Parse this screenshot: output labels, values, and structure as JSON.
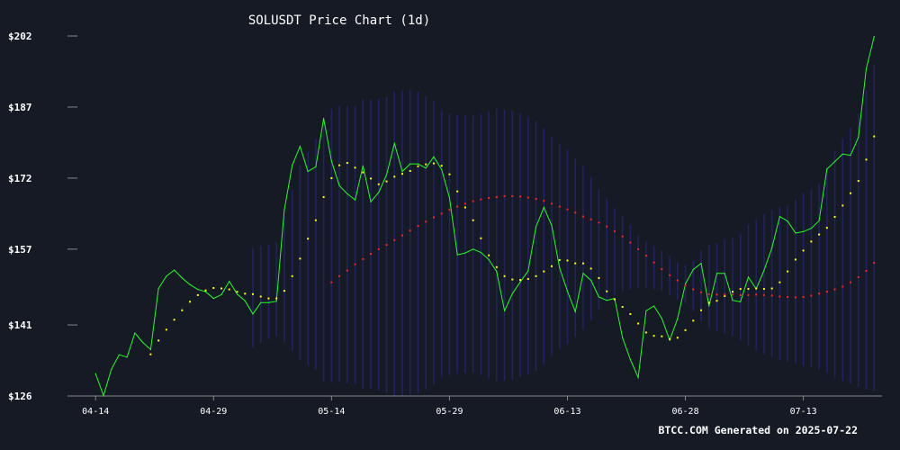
{
  "chart_data": {
    "type": "line",
    "title": "SOLUSDT Price Chart (1d)",
    "footer": "BTCC.COM Generated on 2025-07-22",
    "y_ticks": [
      "$126",
      "$141",
      "$157",
      "$172",
      "$187",
      "$202"
    ],
    "y_tick_values": [
      126,
      141,
      157,
      172,
      187,
      202
    ],
    "x_ticks": [
      "04-14",
      "04-29",
      "05-14",
      "05-29",
      "06-13",
      "06-28",
      "07-13"
    ],
    "x_tick_days": [
      0,
      15,
      30,
      45,
      60,
      75,
      90
    ],
    "ylim": [
      126,
      202
    ],
    "xlim": [
      -3,
      100
    ],
    "grid": false,
    "colors": {
      "background": "#161a25",
      "price": "#22ff22",
      "ma_short": "#ffff00",
      "ma_long": "#ff2222",
      "bands": "#23236e",
      "text": "#ffffff",
      "axis": "#888888"
    },
    "series": [
      {
        "key": "price",
        "x": [
          0,
          1,
          2,
          3,
          4,
          5,
          6,
          7,
          8,
          9,
          10,
          11,
          12,
          13,
          14,
          15,
          16,
          17,
          18,
          19,
          20,
          21,
          22,
          23,
          24,
          25,
          26,
          27,
          28,
          29,
          30,
          31,
          32,
          33,
          34,
          35,
          36,
          37,
          38,
          39,
          40,
          41,
          42,
          43,
          44,
          45,
          46,
          47,
          48,
          49,
          50,
          51,
          52,
          53,
          54,
          55,
          56,
          57,
          58,
          59,
          60,
          61,
          62,
          63,
          64,
          65,
          66,
          67,
          68,
          69,
          70,
          71,
          72,
          73,
          74,
          75,
          76,
          77,
          78,
          79,
          80,
          81,
          82,
          83,
          84,
          85,
          86,
          87,
          88,
          89,
          90,
          91,
          92,
          93,
          94,
          95,
          96,
          97,
          98,
          99
        ],
        "values": [
          130.7,
          126.1,
          131.6,
          134.7,
          134.2,
          139.3,
          137.3,
          135.8,
          148.7,
          151.3,
          152.6,
          150.9,
          149.5,
          148.5,
          148.0,
          146.6,
          147.4,
          150.2,
          147.5,
          146.1,
          143.3,
          145.7,
          145.7,
          146.0,
          165.3,
          174.7,
          178.7,
          173.4,
          174.4,
          184.6,
          175.6,
          170.4,
          168.7,
          167.4,
          174.6,
          167.0,
          169.0,
          172.7,
          179.3,
          173.4,
          175.0,
          175.0,
          174.1,
          176.5,
          173.8,
          167.9,
          155.8,
          156.2,
          157.0,
          156.3,
          154.8,
          152.3,
          144.0,
          147.6,
          150.1,
          152.4,
          161.7,
          165.8,
          162.0,
          153.1,
          148.1,
          143.8,
          151.9,
          150.4,
          146.9,
          146.2,
          146.6,
          138.3,
          133.7,
          129.9,
          144.0,
          145.0,
          142.4,
          137.8,
          142.3,
          149.7,
          152.7,
          154.0,
          145.0,
          151.9,
          151.9,
          146.2,
          145.9,
          151.1,
          148.6,
          152.5,
          157.3,
          163.9,
          162.9,
          160.4,
          160.7,
          161.4,
          163.0,
          173.9,
          175.5,
          177.1,
          176.8,
          180.6,
          195.1,
          201.9
        ]
      },
      {
        "key": "ma_short",
        "x": [
          7,
          8,
          9,
          10,
          11,
          12,
          13,
          14,
          15,
          16,
          17,
          18,
          19,
          20,
          21,
          22,
          23,
          24,
          25,
          26,
          27,
          28,
          29,
          30,
          31,
          32,
          33,
          34,
          35,
          36,
          37,
          38,
          39,
          40,
          41,
          42,
          43,
          44,
          45,
          46,
          47,
          48,
          49,
          50,
          51,
          52,
          53,
          54,
          55,
          56,
          57,
          58,
          59,
          60,
          61,
          62,
          63,
          64,
          65,
          66,
          67,
          68,
          69,
          70,
          71,
          72,
          73,
          74,
          75,
          76,
          77,
          78,
          79,
          80,
          81,
          82,
          83,
          84,
          85,
          86,
          87,
          88,
          89,
          90,
          91,
          92,
          93,
          94,
          95,
          96,
          97,
          98,
          99
        ],
        "values": [
          134.8,
          137.7,
          140.0,
          142.1,
          144.1,
          145.9,
          147.3,
          148.3,
          148.8,
          148.7,
          148.5,
          148.0,
          147.6,
          147.5,
          147.0,
          146.6,
          146.6,
          148.2,
          151.3,
          155.0,
          159.2,
          163.1,
          168.0,
          172.0,
          174.7,
          175.2,
          174.2,
          173.2,
          171.9,
          170.7,
          171.3,
          172.3,
          172.9,
          173.5,
          174.5,
          174.9,
          175.1,
          174.6,
          172.8,
          169.2,
          165.8,
          163.1,
          159.3,
          155.7,
          153.2,
          151.3,
          150.6,
          150.5,
          150.7,
          151.3,
          152.3,
          153.4,
          154.7,
          154.6,
          154.0,
          154.0,
          152.9,
          150.9,
          148.1,
          146.4,
          144.8,
          143.3,
          141.3,
          139.4,
          138.7,
          138.6,
          138.0,
          138.3,
          139.9,
          141.9,
          144.1,
          145.7,
          146.1,
          147.1,
          148.0,
          148.6,
          148.6,
          148.7,
          148.6,
          148.7,
          150.0,
          152.3,
          154.8,
          156.7,
          158.6,
          160.1,
          161.5,
          163.8,
          166.2,
          168.8,
          171.4,
          175.9,
          180.8
        ]
      },
      {
        "key": "ma_long",
        "x": [
          30,
          31,
          32,
          33,
          34,
          35,
          36,
          37,
          38,
          39,
          40,
          41,
          42,
          43,
          44,
          45,
          46,
          47,
          48,
          49,
          50,
          51,
          52,
          53,
          54,
          55,
          56,
          57,
          58,
          59,
          60,
          61,
          62,
          63,
          64,
          65,
          66,
          67,
          68,
          69,
          70,
          71,
          72,
          73,
          74,
          75,
          76,
          77,
          78,
          79,
          80,
          81,
          82,
          83,
          84,
          85,
          86,
          87,
          88,
          89,
          90,
          91,
          92,
          93,
          94,
          95,
          96,
          97,
          98,
          99
        ],
        "values": [
          150.0,
          151.3,
          152.5,
          153.8,
          154.9,
          156.0,
          157.0,
          157.9,
          158.9,
          159.9,
          160.9,
          161.9,
          162.8,
          163.7,
          164.5,
          165.3,
          166.0,
          166.6,
          167.1,
          167.5,
          167.8,
          168.0,
          168.2,
          168.2,
          168.1,
          167.9,
          167.6,
          167.2,
          166.6,
          166.0,
          165.4,
          164.7,
          163.9,
          163.3,
          162.6,
          161.8,
          160.8,
          159.7,
          158.4,
          157.0,
          155.6,
          154.2,
          152.8,
          151.5,
          150.4,
          149.3,
          148.5,
          147.9,
          147.5,
          147.4,
          147.4,
          147.4,
          147.3,
          147.3,
          147.4,
          147.3,
          147.2,
          147.0,
          146.9,
          146.8,
          146.9,
          147.2,
          147.6,
          148.0,
          148.5,
          149.1,
          150.0,
          151.1,
          152.4,
          154.1
        ]
      }
    ],
    "bands": {
      "x_start": 20,
      "x_end": 99,
      "upper": [
        157.3,
        157.7,
        158.0,
        158.4,
        163.9,
        169.5,
        174.7,
        177.7,
        180.3,
        184.9,
        186.6,
        187.2,
        187.3,
        187.2,
        188.6,
        188.5,
        188.7,
        189.1,
        190.3,
        190.5,
        190.5,
        190.2,
        189.3,
        188.3,
        186.2,
        185.6,
        185.4,
        185.3,
        185.2,
        185.5,
        186.1,
        186.6,
        186.4,
        186.2,
        185.6,
        184.8,
        184.0,
        182.5,
        180.7,
        179.2,
        178.0,
        176.2,
        174.5,
        172.2,
        169.6,
        167.7,
        165.7,
        164.0,
        162.1,
        160.0,
        158.7,
        157.6,
        156.7,
        155.4,
        154.2,
        153.6,
        154.6,
        156.7,
        157.9,
        158.3,
        159.0,
        159.3,
        160.3,
        162.1,
        163.2,
        164.4,
        165.2,
        165.9,
        166.3,
        167.5,
        168.8,
        169.5,
        170.8,
        174.2,
        177.7,
        180.3,
        182.7,
        185.6,
        190.5,
        196.0
      ],
      "lower": [
        136.2,
        137.2,
        138.0,
        138.6,
        137.3,
        135.7,
        133.6,
        132.5,
        131.5,
        129.1,
        128.9,
        129.0,
        128.7,
        128.5,
        127.6,
        127.5,
        127.2,
        126.7,
        126.0,
        126.0,
        126.3,
        126.6,
        127.4,
        128.3,
        129.9,
        130.4,
        130.7,
        130.8,
        130.8,
        130.4,
        129.7,
        129.1,
        129.3,
        129.5,
        130.0,
        130.6,
        131.3,
        132.7,
        134.5,
        135.9,
        137.0,
        138.5,
        140.0,
        142.0,
        144.3,
        146.0,
        147.3,
        148.1,
        148.6,
        148.9,
        148.7,
        148.5,
        148.2,
        147.3,
        146.4,
        145.6,
        144.0,
        141.8,
        140.4,
        139.8,
        139.1,
        138.7,
        137.7,
        136.5,
        135.6,
        134.8,
        134.2,
        133.6,
        133.2,
        132.8,
        132.3,
        132.1,
        131.6,
        130.8,
        129.9,
        129.2,
        128.6,
        127.9,
        127.4,
        127.1
      ]
    }
  }
}
